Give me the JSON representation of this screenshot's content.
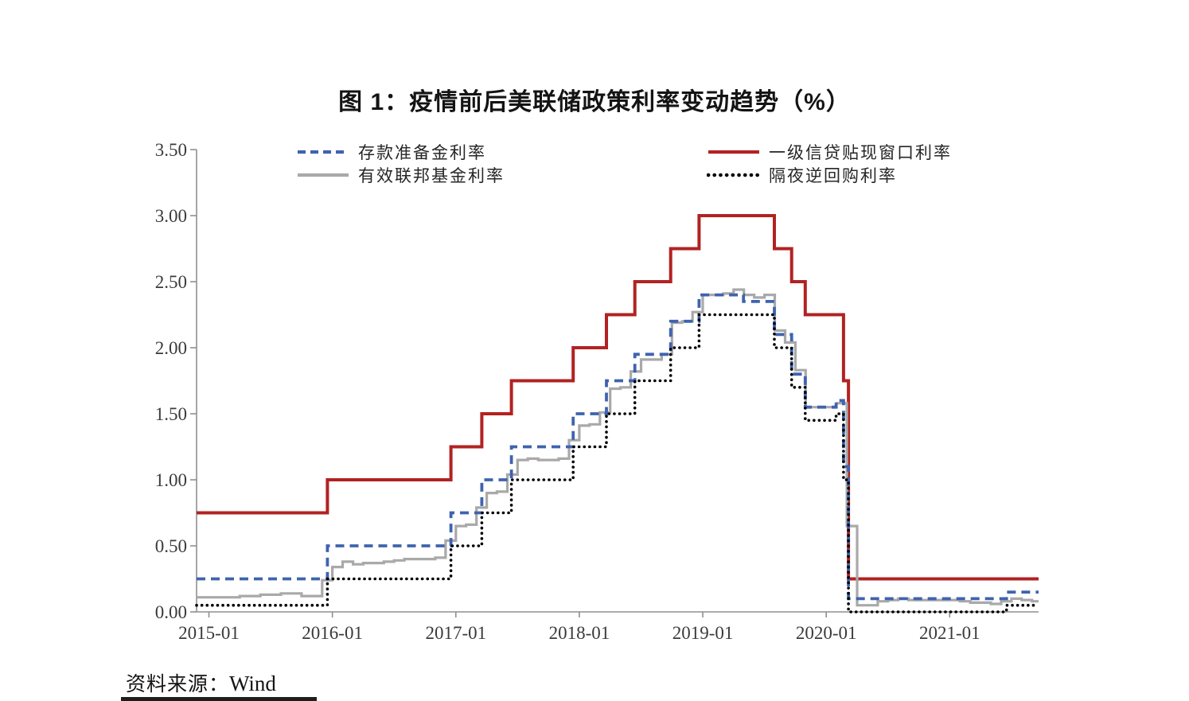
{
  "page": {
    "title": "图 1：疫情前后美联储政策利率变动趋势（%）",
    "source_label": "资料来源：",
    "source_value": "Wind"
  },
  "chart_data": {
    "type": "line",
    "title": "图 1：疫情前后美联储政策利率变动趋势（%）",
    "xlabel": "",
    "ylabel": "",
    "legend_position": "top",
    "grid": false,
    "x_axis": {
      "range": [
        2014.9,
        2021.72
      ],
      "ticks": [
        2015,
        2016,
        2017,
        2018,
        2019,
        2020,
        2021
      ],
      "tick_labels": [
        "2015-01",
        "2016-01",
        "2017-01",
        "2018-01",
        "2019-01",
        "2020-01",
        "2021-01"
      ]
    },
    "y_axis": {
      "range": [
        0,
        3.5
      ],
      "ticks": [
        0,
        0.5,
        1,
        1.5,
        2,
        2.5,
        3,
        3.5
      ],
      "tick_labels": [
        "0.00",
        "0.50",
        "1.00",
        "1.50",
        "2.00",
        "2.50",
        "3.00",
        "3.50"
      ]
    },
    "series": [
      {
        "name": "存款准备金利率",
        "color": "#3F63AE",
        "style": "dashed",
        "step": true,
        "points": [
          [
            2014.9,
            0.25
          ],
          [
            2015.96,
            0.5
          ],
          [
            2016.96,
            0.75
          ],
          [
            2017.21,
            1.0
          ],
          [
            2017.45,
            1.25
          ],
          [
            2017.95,
            1.5
          ],
          [
            2018.22,
            1.75
          ],
          [
            2018.45,
            1.95
          ],
          [
            2018.74,
            2.2
          ],
          [
            2018.97,
            2.4
          ],
          [
            2019.33,
            2.35
          ],
          [
            2019.58,
            2.1
          ],
          [
            2019.72,
            1.8
          ],
          [
            2019.83,
            1.55
          ],
          [
            2020.08,
            1.6
          ],
          [
            2020.14,
            1.1
          ],
          [
            2020.18,
            0.1
          ],
          [
            2021.46,
            0.15
          ],
          [
            2021.72,
            0.15
          ]
        ]
      },
      {
        "name": "有效联邦基金利率",
        "color": "#A9A9A9",
        "style": "solid",
        "step": true,
        "points": [
          [
            2014.9,
            0.11
          ],
          [
            2015.25,
            0.12
          ],
          [
            2015.417,
            0.13
          ],
          [
            2015.583,
            0.14
          ],
          [
            2015.75,
            0.12
          ],
          [
            2015.917,
            0.24
          ],
          [
            2016.0,
            0.34
          ],
          [
            2016.083,
            0.38
          ],
          [
            2016.167,
            0.36
          ],
          [
            2016.25,
            0.37
          ],
          [
            2016.417,
            0.38
          ],
          [
            2016.5,
            0.39
          ],
          [
            2016.583,
            0.4
          ],
          [
            2016.833,
            0.41
          ],
          [
            2016.917,
            0.54
          ],
          [
            2017.0,
            0.65
          ],
          [
            2017.083,
            0.66
          ],
          [
            2017.167,
            0.79
          ],
          [
            2017.25,
            0.9
          ],
          [
            2017.333,
            0.91
          ],
          [
            2017.417,
            1.04
          ],
          [
            2017.5,
            1.15
          ],
          [
            2017.583,
            1.16
          ],
          [
            2017.667,
            1.15
          ],
          [
            2017.833,
            1.16
          ],
          [
            2017.917,
            1.3
          ],
          [
            2018.0,
            1.41
          ],
          [
            2018.083,
            1.42
          ],
          [
            2018.167,
            1.51
          ],
          [
            2018.25,
            1.69
          ],
          [
            2018.333,
            1.7
          ],
          [
            2018.417,
            1.82
          ],
          [
            2018.5,
            1.91
          ],
          [
            2018.667,
            1.95
          ],
          [
            2018.75,
            2.19
          ],
          [
            2018.833,
            2.2
          ],
          [
            2018.917,
            2.27
          ],
          [
            2019.0,
            2.4
          ],
          [
            2019.167,
            2.41
          ],
          [
            2019.25,
            2.44
          ],
          [
            2019.333,
            2.4
          ],
          [
            2019.417,
            2.38
          ],
          [
            2019.5,
            2.4
          ],
          [
            2019.583,
            2.13
          ],
          [
            2019.667,
            2.04
          ],
          [
            2019.75,
            1.83
          ],
          [
            2019.833,
            1.55
          ],
          [
            2020.083,
            1.58
          ],
          [
            2020.167,
            0.65
          ],
          [
            2020.25,
            0.05
          ],
          [
            2020.417,
            0.08
          ],
          [
            2020.5,
            0.09
          ],
          [
            2020.583,
            0.1
          ],
          [
            2020.667,
            0.09
          ],
          [
            2021.0,
            0.09
          ],
          [
            2021.083,
            0.08
          ],
          [
            2021.167,
            0.07
          ],
          [
            2021.333,
            0.06
          ],
          [
            2021.417,
            0.08
          ],
          [
            2021.5,
            0.1
          ],
          [
            2021.583,
            0.09
          ],
          [
            2021.667,
            0.08
          ],
          [
            2021.72,
            0.08
          ]
        ]
      },
      {
        "name": "一级信贷贴现窗口利率",
        "color": "#B22222",
        "style": "solid",
        "step": true,
        "points": [
          [
            2014.9,
            0.75
          ],
          [
            2015.96,
            1.0
          ],
          [
            2016.96,
            1.25
          ],
          [
            2017.21,
            1.5
          ],
          [
            2017.45,
            1.75
          ],
          [
            2017.95,
            2.0
          ],
          [
            2018.22,
            2.25
          ],
          [
            2018.45,
            2.5
          ],
          [
            2018.74,
            2.75
          ],
          [
            2018.97,
            3.0
          ],
          [
            2019.58,
            2.75
          ],
          [
            2019.72,
            2.5
          ],
          [
            2019.83,
            2.25
          ],
          [
            2020.14,
            1.75
          ],
          [
            2020.18,
            0.25
          ],
          [
            2021.72,
            0.25
          ]
        ]
      },
      {
        "name": "隔夜逆回购利率",
        "color": "#000000",
        "style": "dotted",
        "step": true,
        "points": [
          [
            2014.9,
            0.05
          ],
          [
            2015.96,
            0.25
          ],
          [
            2016.96,
            0.5
          ],
          [
            2017.21,
            0.75
          ],
          [
            2017.45,
            1.0
          ],
          [
            2017.95,
            1.25
          ],
          [
            2018.22,
            1.5
          ],
          [
            2018.45,
            1.75
          ],
          [
            2018.74,
            2.0
          ],
          [
            2018.97,
            2.25
          ],
          [
            2019.58,
            2.0
          ],
          [
            2019.72,
            1.7
          ],
          [
            2019.83,
            1.45
          ],
          [
            2020.08,
            1.5
          ],
          [
            2020.14,
            1.0
          ],
          [
            2020.18,
            0.0
          ],
          [
            2021.46,
            0.05
          ],
          [
            2021.72,
            0.05
          ]
        ]
      }
    ]
  }
}
